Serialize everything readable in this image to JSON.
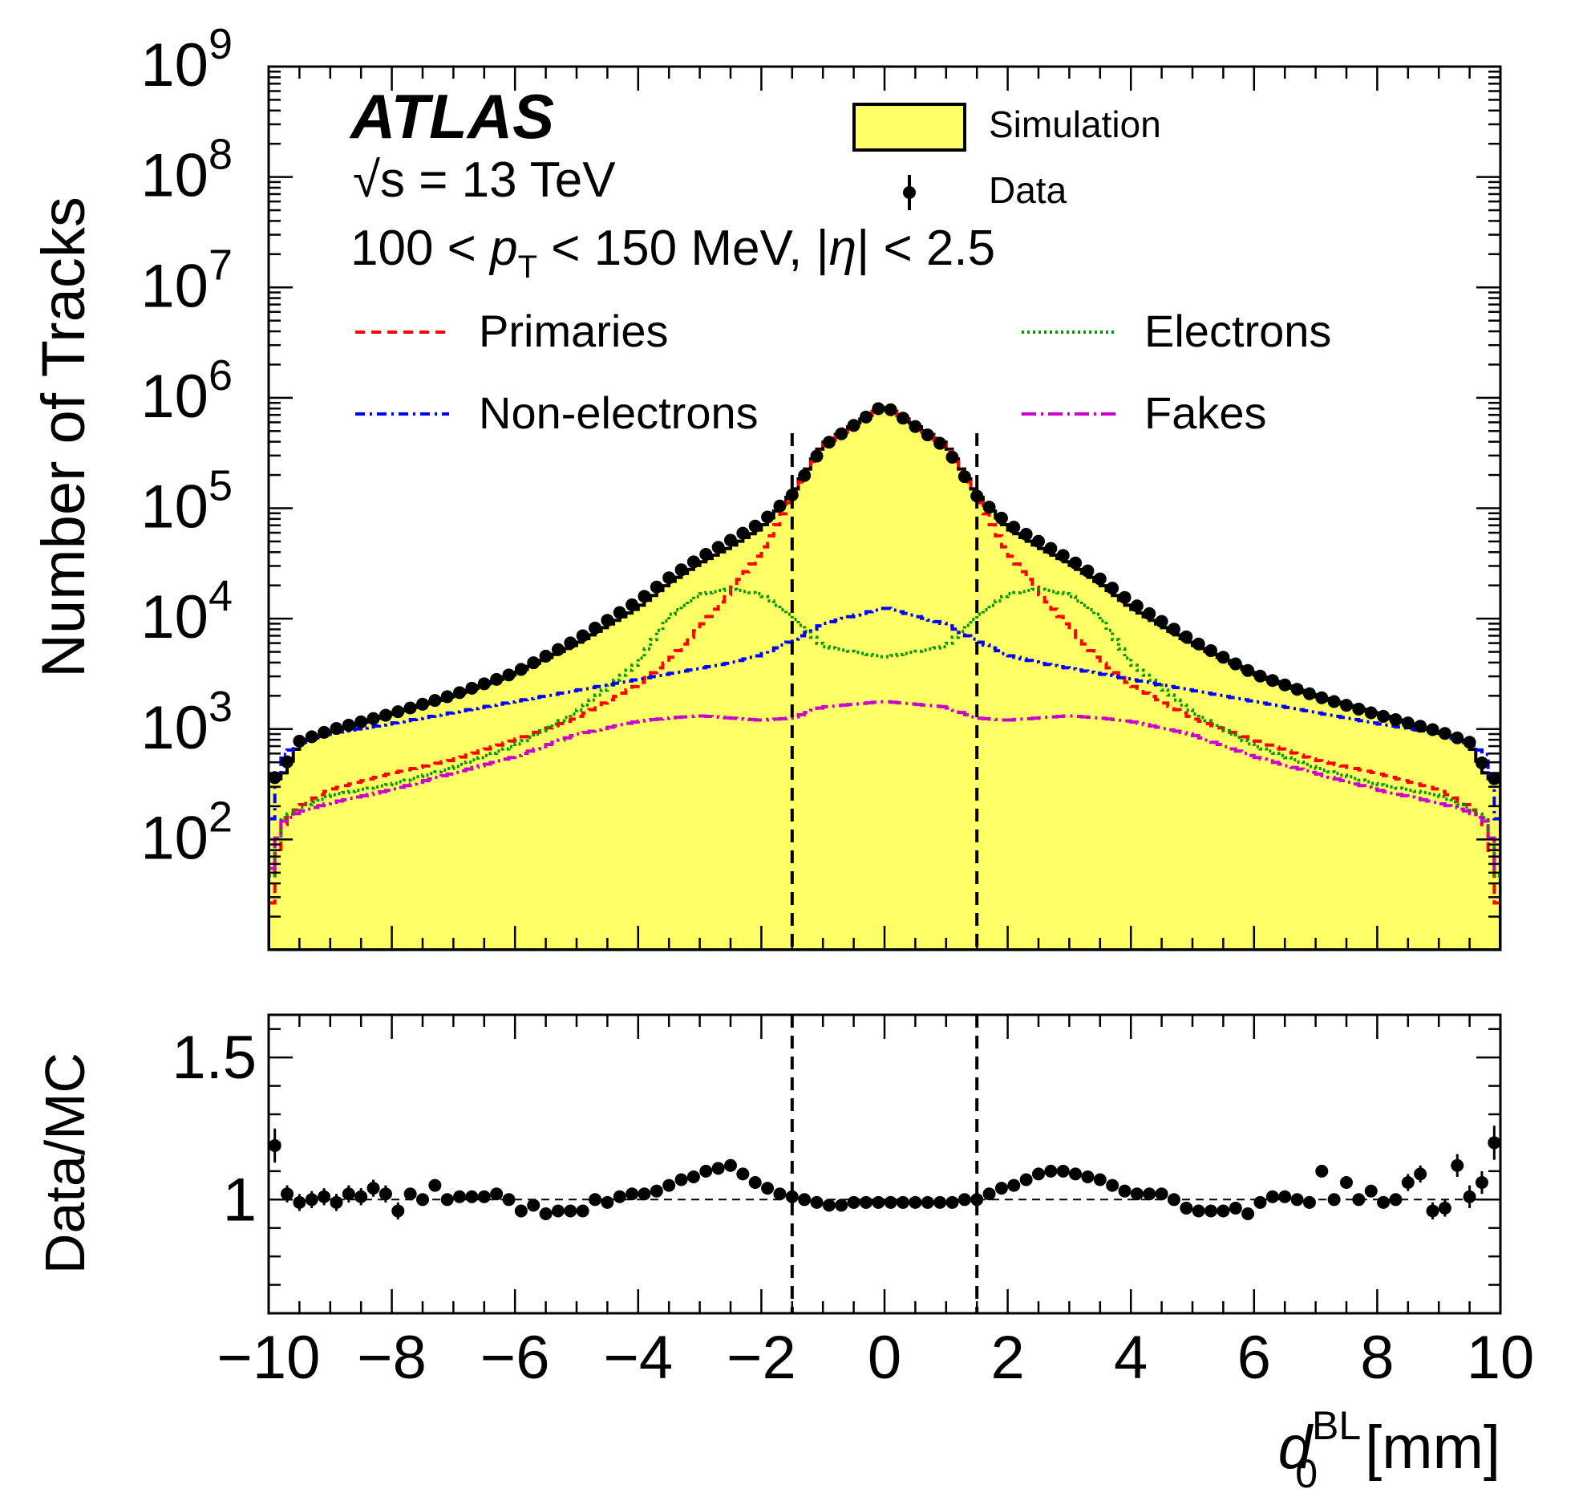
{
  "chart_data": [
    {
      "panel": "main",
      "type": "histogram",
      "ylabel": "Number of Tracks",
      "yscale": "log",
      "ylim": [
        10,
        1000000000
      ],
      "xlim": [
        -10,
        10
      ],
      "y_tick_labels": [
        "10",
        "10",
        "10",
        "10",
        "10",
        "10",
        "10",
        "10"
      ],
      "y_tick_exponents": [
        "2",
        "3",
        "4",
        "5",
        "6",
        "7",
        "8",
        "9"
      ],
      "experiment": "ATLAS",
      "energy_label": "√s = 13 TeV",
      "selection_label": {
        "prefix": "100 < ",
        "var": "p",
        "sub": "T",
        "middle": " < 150 MeV, |",
        "eta": "η",
        "suffix": "| < 2.5"
      },
      "legend": {
        "simulation": "Simulation",
        "data": "Data",
        "primaries": "Primaries",
        "electrons": "Electrons",
        "non_electrons": "Non-electrons",
        "fakes": "Fakes"
      },
      "vertical_cut_lines": [
        -1.5,
        1.5
      ],
      "colors": {
        "simulation_fill": "#ffff66",
        "primaries": "#ff0000",
        "electrons": "#009900",
        "non_electrons": "#0000ff",
        "fakes": "#cc00cc",
        "data": "#000000"
      },
      "shape_nodes": {
        "x": [
          0,
          1,
          1.5,
          2,
          2.5,
          3,
          3.5,
          4,
          5,
          6,
          7,
          8,
          9,
          9.5,
          9.8,
          10
        ],
        "simulation_log10": [
          5.93,
          5.58,
          5.13,
          4.82,
          4.65,
          4.5,
          4.32,
          4.1,
          3.77,
          3.5,
          3.3,
          3.14,
          2.97,
          2.87,
          2.55,
          2.55
        ],
        "data_log10": [
          5.93,
          5.55,
          5.11,
          4.86,
          4.7,
          4.54,
          4.36,
          4.15,
          3.8,
          3.5,
          3.3,
          3.13,
          2.98,
          2.88,
          2.6,
          2.5
        ],
        "primaries_log10": [
          5.93,
          5.56,
          5.1,
          4.6,
          4.25,
          3.92,
          3.62,
          3.4,
          3.1,
          2.9,
          2.72,
          2.6,
          2.45,
          2.3,
          2.1,
          1.2
        ],
        "electrons_log10": [
          3.65,
          3.75,
          4.02,
          4.22,
          4.27,
          4.22,
          4.02,
          3.6,
          3.15,
          2.85,
          2.65,
          2.5,
          2.4,
          2.28,
          2.18,
          1.5
        ],
        "non_electrons_log10": [
          4.1,
          3.95,
          3.8,
          3.67,
          3.6,
          3.55,
          3.5,
          3.45,
          3.35,
          3.25,
          3.15,
          3.05,
          2.96,
          2.87,
          2.75,
          2.0
        ],
        "fakes_log10": [
          3.25,
          3.2,
          3.1,
          3.08,
          3.1,
          3.12,
          3.1,
          3.07,
          2.95,
          2.75,
          2.6,
          2.45,
          2.33,
          2.25,
          2.15,
          1.6
        ]
      }
    },
    {
      "panel": "ratio",
      "type": "scatter",
      "ylabel": "Data/MC",
      "ylim": [
        0.6,
        1.65
      ],
      "xlabel": "d",
      "xlabel_sub": "0",
      "xlabel_sup": "BL",
      "xlabel_unit": " [mm]",
      "x_tick_labels": [
        "−10",
        "−8",
        "−6",
        "−4",
        "−2",
        "0",
        "2",
        "4",
        "6",
        "8",
        "10"
      ],
      "y_tick_labels": [
        "1",
        "1.5"
      ],
      "reference_line": 1.0,
      "x": [
        -9.9,
        -9.7,
        -9.5,
        -9.3,
        -9.1,
        -8.9,
        -8.7,
        -8.5,
        -8.3,
        -8.1,
        -7.9,
        -7.7,
        -7.5,
        -7.3,
        -7.1,
        -6.9,
        -6.7,
        -6.5,
        -6.3,
        -6.1,
        -5.9,
        -5.7,
        -5.5,
        -5.3,
        -5.1,
        -4.9,
        -4.7,
        -4.5,
        -4.3,
        -4.1,
        -3.9,
        -3.7,
        -3.5,
        -3.3,
        -3.1,
        -2.9,
        -2.7,
        -2.5,
        -2.3,
        -2.1,
        -1.9,
        -1.7,
        -1.5,
        -1.3,
        -1.1,
        -0.9,
        -0.7,
        -0.5,
        -0.3,
        -0.1,
        0.1,
        0.3,
        0.5,
        0.7,
        0.9,
        1.1,
        1.3,
        1.5,
        1.7,
        1.9,
        2.1,
        2.3,
        2.5,
        2.7,
        2.9,
        3.1,
        3.3,
        3.5,
        3.7,
        3.9,
        4.1,
        4.3,
        4.5,
        4.7,
        4.9,
        5.1,
        5.3,
        5.5,
        5.7,
        5.9,
        6.1,
        6.3,
        6.5,
        6.7,
        6.9,
        7.1,
        7.3,
        7.5,
        7.7,
        7.9,
        8.1,
        8.3,
        8.5,
        8.7,
        8.9,
        9.1,
        9.3,
        9.5,
        9.7,
        9.9
      ],
      "y": [
        1.19,
        1.02,
        0.99,
        1.0,
        1.01,
        0.99,
        1.02,
        1.01,
        1.04,
        1.02,
        0.96,
        1.02,
        1.0,
        1.05,
        1.0,
        1.01,
        1.01,
        1.01,
        1.02,
        1.0,
        0.96,
        0.98,
        0.95,
        0.96,
        0.96,
        0.96,
        1.0,
        0.99,
        1.01,
        1.02,
        1.02,
        1.03,
        1.05,
        1.07,
        1.08,
        1.1,
        1.11,
        1.12,
        1.09,
        1.06,
        1.04,
        1.02,
        1.01,
        1.0,
        0.99,
        0.98,
        0.98,
        0.99,
        0.99,
        0.99,
        0.99,
        0.99,
        0.99,
        0.99,
        0.99,
        0.99,
        1.0,
        1.0,
        1.02,
        1.04,
        1.05,
        1.07,
        1.09,
        1.1,
        1.1,
        1.09,
        1.08,
        1.07,
        1.05,
        1.03,
        1.02,
        1.02,
        1.02,
        1.0,
        0.97,
        0.96,
        0.96,
        0.96,
        0.97,
        0.95,
        0.99,
        1.01,
        1.01,
        1.0,
        0.99,
        1.1,
        1.0,
        1.06,
        1.0,
        1.03,
        0.99,
        1.0,
        1.06,
        1.09,
        0.96,
        0.97,
        1.12,
        1.01,
        1.06,
        1.2
      ],
      "yerr": [
        0.06,
        0.03,
        0.03,
        0.03,
        0.03,
        0.03,
        0.03,
        0.03,
        0.03,
        0.03,
        0.03,
        0.02,
        0.02,
        0.02,
        0.02,
        0.02,
        0.02,
        0.02,
        0.02,
        0.02,
        0.01,
        0.01,
        0.01,
        0.01,
        0.01,
        0.01,
        0.01,
        0.01,
        0.01,
        0.01,
        0.01,
        0.01,
        0.01,
        0.01,
        0.01,
        0.01,
        0.01,
        0.01,
        0.01,
        0.01,
        0.01,
        0.01,
        0.01,
        0.01,
        0.01,
        0.01,
        0.01,
        0.01,
        0.01,
        0.01,
        0.01,
        0.01,
        0.01,
        0.01,
        0.01,
        0.01,
        0.01,
        0.01,
        0.01,
        0.01,
        0.01,
        0.01,
        0.01,
        0.01,
        0.01,
        0.01,
        0.01,
        0.01,
        0.01,
        0.01,
        0.01,
        0.01,
        0.01,
        0.01,
        0.01,
        0.01,
        0.01,
        0.01,
        0.01,
        0.01,
        0.01,
        0.01,
        0.02,
        0.02,
        0.02,
        0.02,
        0.02,
        0.02,
        0.02,
        0.02,
        0.02,
        0.02,
        0.03,
        0.03,
        0.03,
        0.03,
        0.04,
        0.04,
        0.04,
        0.06
      ]
    }
  ]
}
